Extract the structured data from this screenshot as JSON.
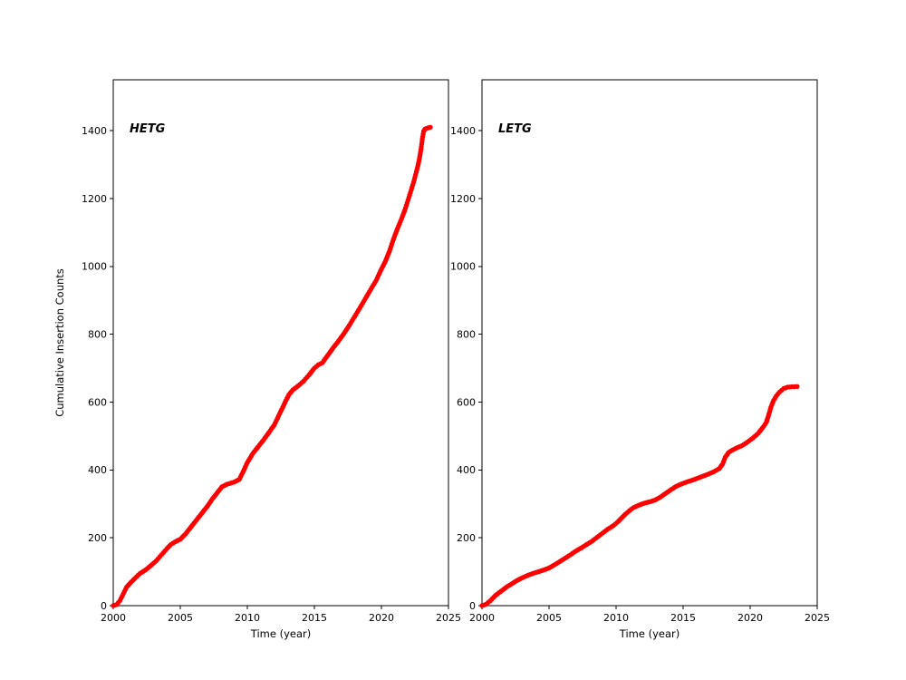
{
  "figure": {
    "background": "#ffffff",
    "marker_color": "#ff0000",
    "axis_color": "#000000"
  },
  "chart_data": [
    {
      "type": "scatter",
      "label": "HETG",
      "xlabel": "Time (year)",
      "ylabel": "Cumulative Insertion Counts",
      "xlim": [
        2000,
        2025
      ],
      "ylim": [
        0,
        1550
      ],
      "xticks": [
        2000,
        2005,
        2010,
        2015,
        2020,
        2025
      ],
      "yticks": [
        0,
        200,
        400,
        600,
        800,
        1000,
        1200,
        1400
      ],
      "series_name": "hetg-cumulative-insertions",
      "points": [
        [
          2000.0,
          0
        ],
        [
          2000.25,
          3
        ],
        [
          2000.5,
          15
        ],
        [
          2000.75,
          35
        ],
        [
          2001.0,
          55
        ],
        [
          2001.3,
          68
        ],
        [
          2001.6,
          80
        ],
        [
          2002.0,
          95
        ],
        [
          2002.4,
          105
        ],
        [
          2002.8,
          118
        ],
        [
          2003.2,
          132
        ],
        [
          2003.6,
          150
        ],
        [
          2004.0,
          168
        ],
        [
          2004.3,
          180
        ],
        [
          2004.6,
          188
        ],
        [
          2005.0,
          196
        ],
        [
          2005.4,
          212
        ],
        [
          2005.8,
          232
        ],
        [
          2006.2,
          252
        ],
        [
          2006.6,
          272
        ],
        [
          2007.0,
          292
        ],
        [
          2007.4,
          315
        ],
        [
          2007.8,
          335
        ],
        [
          2008.1,
          350
        ],
        [
          2008.5,
          358
        ],
        [
          2009.0,
          364
        ],
        [
          2009.4,
          372
        ],
        [
          2009.7,
          396
        ],
        [
          2010.0,
          422
        ],
        [
          2010.4,
          448
        ],
        [
          2010.8,
          468
        ],
        [
          2011.2,
          488
        ],
        [
          2011.6,
          510
        ],
        [
          2012.0,
          532
        ],
        [
          2012.4,
          565
        ],
        [
          2012.8,
          598
        ],
        [
          2013.1,
          622
        ],
        [
          2013.4,
          636
        ],
        [
          2013.8,
          648
        ],
        [
          2014.2,
          662
        ],
        [
          2014.6,
          680
        ],
        [
          2015.0,
          700
        ],
        [
          2015.3,
          710
        ],
        [
          2015.6,
          716
        ],
        [
          2016.0,
          738
        ],
        [
          2016.4,
          760
        ],
        [
          2016.8,
          780
        ],
        [
          2017.2,
          802
        ],
        [
          2017.6,
          826
        ],
        [
          2018.0,
          852
        ],
        [
          2018.4,
          878
        ],
        [
          2018.8,
          905
        ],
        [
          2019.2,
          932
        ],
        [
          2019.6,
          958
        ],
        [
          2020.0,
          992
        ],
        [
          2020.3,
          1015
        ],
        [
          2020.6,
          1045
        ],
        [
          2020.9,
          1080
        ],
        [
          2021.2,
          1112
        ],
        [
          2021.5,
          1140
        ],
        [
          2021.8,
          1172
        ],
        [
          2022.1,
          1210
        ],
        [
          2022.4,
          1248
        ],
        [
          2022.6,
          1278
        ],
        [
          2022.8,
          1310
        ],
        [
          2022.95,
          1345
        ],
        [
          2023.05,
          1375
        ],
        [
          2023.15,
          1398
        ],
        [
          2023.25,
          1405
        ],
        [
          2023.45,
          1408
        ],
        [
          2023.65,
          1410
        ]
      ]
    },
    {
      "type": "scatter",
      "label": "LETG",
      "xlabel": "Time (year)",
      "ylabel": "",
      "xlim": [
        2000,
        2025
      ],
      "ylim": [
        0,
        1550
      ],
      "xticks": [
        2000,
        2005,
        2010,
        2015,
        2020,
        2025
      ],
      "yticks": [
        0,
        200,
        400,
        600,
        800,
        1000,
        1200,
        1400
      ],
      "series_name": "letg-cumulative-insertions",
      "points": [
        [
          2000.0,
          0
        ],
        [
          2000.3,
          4
        ],
        [
          2000.6,
          14
        ],
        [
          2001.0,
          30
        ],
        [
          2001.4,
          42
        ],
        [
          2001.8,
          54
        ],
        [
          2002.2,
          64
        ],
        [
          2002.6,
          74
        ],
        [
          2003.0,
          82
        ],
        [
          2003.4,
          89
        ],
        [
          2003.8,
          95
        ],
        [
          2004.2,
          100
        ],
        [
          2004.6,
          105
        ],
        [
          2005.0,
          111
        ],
        [
          2005.4,
          120
        ],
        [
          2005.8,
          130
        ],
        [
          2006.2,
          140
        ],
        [
          2006.6,
          150
        ],
        [
          2007.0,
          161
        ],
        [
          2007.4,
          170
        ],
        [
          2007.8,
          180
        ],
        [
          2008.2,
          190
        ],
        [
          2008.6,
          202
        ],
        [
          2009.0,
          214
        ],
        [
          2009.4,
          226
        ],
        [
          2009.8,
          236
        ],
        [
          2010.1,
          246
        ],
        [
          2010.4,
          258
        ],
        [
          2010.7,
          270
        ],
        [
          2011.0,
          280
        ],
        [
          2011.3,
          289
        ],
        [
          2011.7,
          296
        ],
        [
          2012.1,
          302
        ],
        [
          2012.5,
          306
        ],
        [
          2012.9,
          311
        ],
        [
          2013.3,
          320
        ],
        [
          2013.7,
          331
        ],
        [
          2014.1,
          342
        ],
        [
          2014.5,
          352
        ],
        [
          2014.9,
          359
        ],
        [
          2015.3,
          365
        ],
        [
          2015.7,
          370
        ],
        [
          2016.1,
          376
        ],
        [
          2016.5,
          382
        ],
        [
          2016.9,
          388
        ],
        [
          2017.3,
          395
        ],
        [
          2017.7,
          404
        ],
        [
          2017.95,
          418
        ],
        [
          2018.15,
          438
        ],
        [
          2018.4,
          452
        ],
        [
          2018.7,
          459
        ],
        [
          2019.0,
          465
        ],
        [
          2019.4,
          472
        ],
        [
          2019.8,
          482
        ],
        [
          2020.2,
          494
        ],
        [
          2020.6,
          508
        ],
        [
          2021.0,
          528
        ],
        [
          2021.2,
          540
        ],
        [
          2021.35,
          558
        ],
        [
          2021.55,
          585
        ],
        [
          2021.75,
          605
        ],
        [
          2021.95,
          618
        ],
        [
          2022.2,
          630
        ],
        [
          2022.5,
          640
        ],
        [
          2022.8,
          644
        ],
        [
          2023.1,
          645
        ],
        [
          2023.5,
          646
        ]
      ]
    }
  ]
}
